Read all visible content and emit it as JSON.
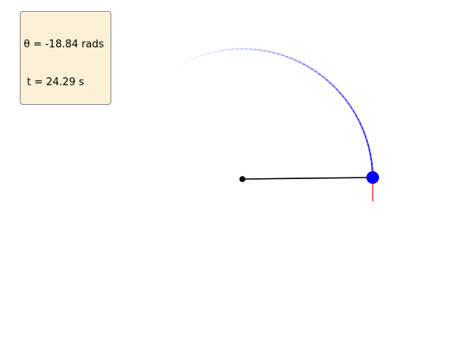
{
  "readout": {
    "theta_text": "θ = -18.84 rads",
    "time_text": " t = 24.29 s"
  },
  "pendulum": {
    "theta_rad": -18.84,
    "time_s": 24.29
  },
  "colors": {
    "rod": "#000000",
    "bob": "#0000ff",
    "trail": "#0000ff",
    "velocity_vector": "#ff0000",
    "info_box_bg": "#fbefd5",
    "info_box_border": "#8a8a8a"
  }
}
